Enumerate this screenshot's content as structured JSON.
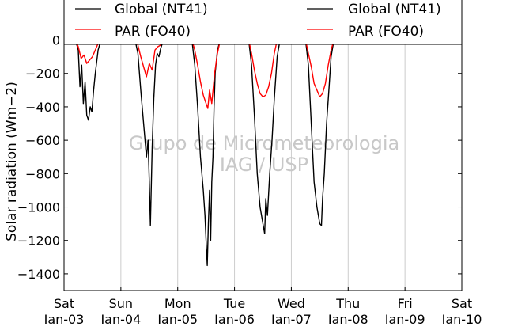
{
  "chart_data": {
    "type": "line",
    "title": "",
    "xlabel": "",
    "ylabel": "Solar radiation (Wm−2)",
    "ylim": [
      -1500,
      50
    ],
    "yticks": [
      0,
      -200,
      -400,
      -600,
      -800,
      -1000,
      -1200,
      -1400
    ],
    "ytick_labels": [
      "0",
      "−200",
      "−400",
      "−600",
      "−800",
      "−1000",
      "−1200",
      "−1400"
    ],
    "x_days": [
      "Sat\nJan-03",
      "Sun\nJan-04",
      "Mon\nJan-05",
      "Tue\nJan-06",
      "Wed\nJan-07",
      "Thu\nJan-08",
      "Fri\nJan-09",
      "Sat\nJan-10"
    ],
    "xtick_labels": [
      {
        "day": "Sat",
        "date": "Jan-03"
      },
      {
        "day": "Sun",
        "date": "Jan-04"
      },
      {
        "day": "Mon",
        "date": "Jan-05"
      },
      {
        "day": "Tue",
        "date": "Jan-06"
      },
      {
        "day": "Wed",
        "date": "Jan-07"
      },
      {
        "day": "Thu",
        "date": "Jan-08"
      },
      {
        "day": "Fri",
        "date": "Jan-09"
      },
      {
        "day": "Sat",
        "date": "Jan-10"
      }
    ],
    "grid": "vertical",
    "legend_position": "top (two overlapping legend boxes)",
    "legend_entries": [
      {
        "label": "Global (NT41)",
        "color": "#000000"
      },
      {
        "label": "PAR (FO40)",
        "color": "#ff0000"
      },
      {
        "label": "Global (NT41)",
        "color": "#000000"
      },
      {
        "label": "PAR (FO40)",
        "color": "#ff0000"
      }
    ],
    "watermark": [
      "Grupo de Micrometeorologia",
      "IAG / USP"
    ],
    "series": [
      {
        "name": "Global (NT41)",
        "color": "#000000",
        "x": [
          0.0,
          0.2,
          0.25,
          0.28,
          0.31,
          0.34,
          0.37,
          0.4,
          0.43,
          0.46,
          0.49,
          0.52,
          0.55,
          0.6,
          0.65,
          0.75,
          1.0,
          1.25,
          1.3,
          1.35,
          1.4,
          1.45,
          1.48,
          1.5,
          1.52,
          1.55,
          1.58,
          1.61,
          1.64,
          1.67,
          1.7,
          1.75,
          1.8,
          2.0,
          2.25,
          2.3,
          2.35,
          2.4,
          2.45,
          2.48,
          2.5,
          2.52,
          2.54,
          2.56,
          2.58,
          2.6,
          2.62,
          2.64,
          2.66,
          2.7,
          2.75,
          2.8,
          2.85,
          3.0,
          3.25,
          3.3,
          3.35,
          3.4,
          3.45,
          3.5,
          3.53,
          3.55,
          3.58,
          3.62,
          3.66,
          3.7,
          3.75,
          3.8,
          4.0,
          4.25,
          4.3,
          4.35,
          4.4,
          4.45,
          4.5,
          4.53,
          4.55,
          4.58,
          4.62,
          4.66,
          4.7,
          4.75,
          4.8,
          5.0,
          7.0
        ],
        "y": [
          0,
          0,
          -60,
          -280,
          -150,
          -380,
          -250,
          -450,
          -480,
          -400,
          -430,
          -300,
          -200,
          -60,
          0,
          0,
          0,
          0,
          -80,
          -300,
          -500,
          -700,
          -600,
          -850,
          -1110,
          -650,
          -350,
          -150,
          -80,
          -100,
          -50,
          0,
          0,
          0,
          0,
          -150,
          -400,
          -700,
          -900,
          -1050,
          -1200,
          -1350,
          -1100,
          -900,
          -1200,
          -850,
          -700,
          -400,
          -200,
          -60,
          0,
          0,
          0,
          0,
          0,
          -150,
          -450,
          -800,
          -1000,
          -1100,
          -1160,
          -950,
          -1050,
          -800,
          -600,
          -350,
          -100,
          0,
          0,
          0,
          -150,
          -500,
          -850,
          -1000,
          -1100,
          -1110,
          -950,
          -800,
          -500,
          -300,
          -100,
          0,
          0,
          0,
          0
        ]
      },
      {
        "name": "PAR (FO40)",
        "color": "#ff0000",
        "x": [
          0.0,
          0.2,
          0.25,
          0.3,
          0.35,
          0.4,
          0.45,
          0.5,
          0.55,
          0.6,
          0.65,
          0.75,
          1.0,
          1.25,
          1.3,
          1.35,
          1.4,
          1.45,
          1.5,
          1.55,
          1.6,
          1.65,
          1.7,
          1.75,
          1.8,
          2.0,
          2.25,
          2.3,
          2.35,
          2.4,
          2.45,
          2.5,
          2.53,
          2.56,
          2.6,
          2.65,
          2.7,
          2.75,
          2.8,
          3.0,
          3.25,
          3.3,
          3.35,
          3.4,
          3.45,
          3.5,
          3.55,
          3.6,
          3.65,
          3.7,
          3.75,
          3.8,
          4.0,
          4.25,
          4.3,
          4.35,
          4.4,
          4.45,
          4.5,
          4.55,
          4.6,
          4.65,
          4.7,
          4.75,
          4.8,
          5.0,
          7.0
        ],
        "y": [
          0,
          0,
          -40,
          -110,
          -90,
          -140,
          -120,
          -100,
          -60,
          -20,
          0,
          0,
          0,
          0,
          -30,
          -100,
          -160,
          -220,
          -140,
          -180,
          -60,
          -40,
          -30,
          0,
          0,
          0,
          0,
          -60,
          -150,
          -250,
          -330,
          -380,
          -410,
          -300,
          -380,
          -200,
          -80,
          0,
          0,
          0,
          0,
          -80,
          -180,
          -260,
          -320,
          -340,
          -330,
          -280,
          -200,
          -80,
          0,
          0,
          0,
          0,
          -80,
          -160,
          -260,
          -300,
          -340,
          -320,
          -260,
          -150,
          -60,
          0,
          0,
          0,
          0
        ]
      }
    ]
  }
}
